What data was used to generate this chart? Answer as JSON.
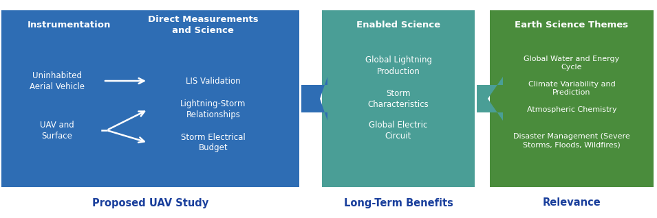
{
  "bg_color": "#ffffff",
  "box1_color": "#2E6DB4",
  "box2_color": "#4A9E96",
  "box3_color": "#4A8C3C",
  "text_color_white": "#ffffff",
  "text_color_blue": "#1A3F9C",
  "box1_header1": "Instrumentation",
  "box1_header2": "Direct Measurements\nand Science",
  "box2_header": "Enabled Science",
  "box3_header": "Earth Science Themes",
  "box1_items_left": [
    "Uninhabited\nAerial Vehicle",
    "UAV and\nSurface"
  ],
  "box1_items_right": [
    "LIS Validation",
    "Lightning-Storm\nRelationships",
    "Storm Electrical\nBudget"
  ],
  "box2_items": [
    "Global Lightning\nProduction",
    "Storm\nCharacteristics",
    "Global Electric\nCircuit"
  ],
  "box3_items": [
    "Global Water and Energy\nCycle",
    "Climate Variability and\nPrediction",
    "Atmospheric Chemistry",
    "Disaster Management (Severe\nStorms, Floods, Wildfires)"
  ],
  "label1": "Proposed UAV Study",
  "label2": "Long-Term Benefits",
  "label3": "Relevance",
  "figsize": [
    9.55,
    3.18
  ],
  "dpi": 100
}
